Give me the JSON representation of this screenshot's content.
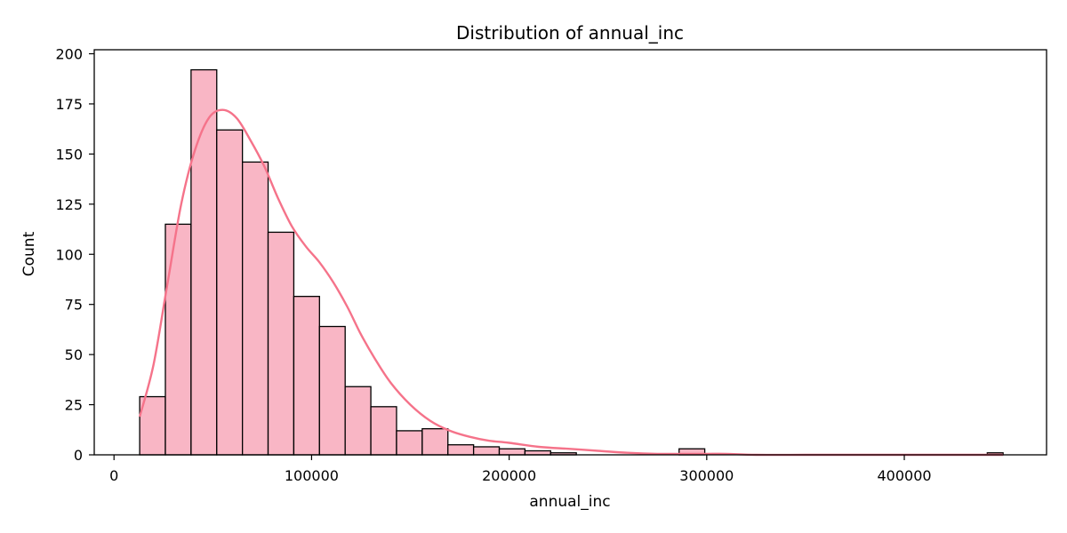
{
  "chart_data": {
    "type": "bar",
    "subtype": "histogram_with_kde",
    "title": "Distribution of annual_inc",
    "xlabel": "annual_inc",
    "ylabel": "Count",
    "xlim": [
      -10000,
      472000
    ],
    "ylim": [
      0,
      202
    ],
    "x_ticks": [
      0,
      100000,
      200000,
      300000,
      400000
    ],
    "x_tick_labels": [
      "0",
      "100000",
      "200000",
      "300000",
      "400000"
    ],
    "y_ticks": [
      0,
      25,
      50,
      75,
      100,
      125,
      150,
      175,
      200
    ],
    "y_tick_labels": [
      "0",
      "25",
      "50",
      "75",
      "100",
      "125",
      "150",
      "175",
      "200"
    ],
    "grid": false,
    "bin_edges": [
      13000,
      26000,
      39000,
      52000,
      65000,
      78000,
      91000,
      104000,
      117000,
      130000,
      143000,
      156000,
      169000,
      182000,
      195000,
      208000,
      221000,
      234000,
      247000,
      260000,
      273000,
      286000,
      299000,
      312000,
      325000,
      338000,
      351000,
      364000,
      377000,
      390000,
      403000,
      416000,
      429000,
      442000,
      450000
    ],
    "counts": [
      29,
      115,
      192,
      162,
      146,
      111,
      79,
      64,
      34,
      24,
      12,
      13,
      5,
      4,
      3,
      2,
      1,
      0,
      0,
      0,
      0,
      3,
      0,
      0,
      0,
      0,
      0,
      0,
      0,
      0,
      0,
      0,
      0,
      1
    ],
    "kde": {
      "x": [
        13000,
        20000,
        27000,
        34000,
        41000,
        48000,
        55000,
        62000,
        69000,
        76000,
        83000,
        90000,
        97000,
        104000,
        111000,
        118000,
        125000,
        132000,
        140000,
        150000,
        160000,
        170000,
        180000,
        190000,
        200000,
        215000,
        230000,
        245000,
        260000,
        275000,
        290000,
        300000,
        310000,
        325000,
        350000,
        400000,
        450000
      ],
      "y": [
        19,
        45,
        85,
        125,
        152,
        168,
        172,
        168,
        157,
        144,
        128,
        114,
        104,
        96,
        86,
        74,
        60,
        48,
        36,
        25,
        17,
        12,
        9,
        7,
        6,
        4,
        3,
        2,
        1,
        0.5,
        0.5,
        0.5,
        0.5,
        0,
        0,
        0,
        0
      ]
    },
    "colors": {
      "bar_fill": "#f9b6c5",
      "bar_edge": "#000000",
      "kde_line": "#f5738a"
    }
  }
}
